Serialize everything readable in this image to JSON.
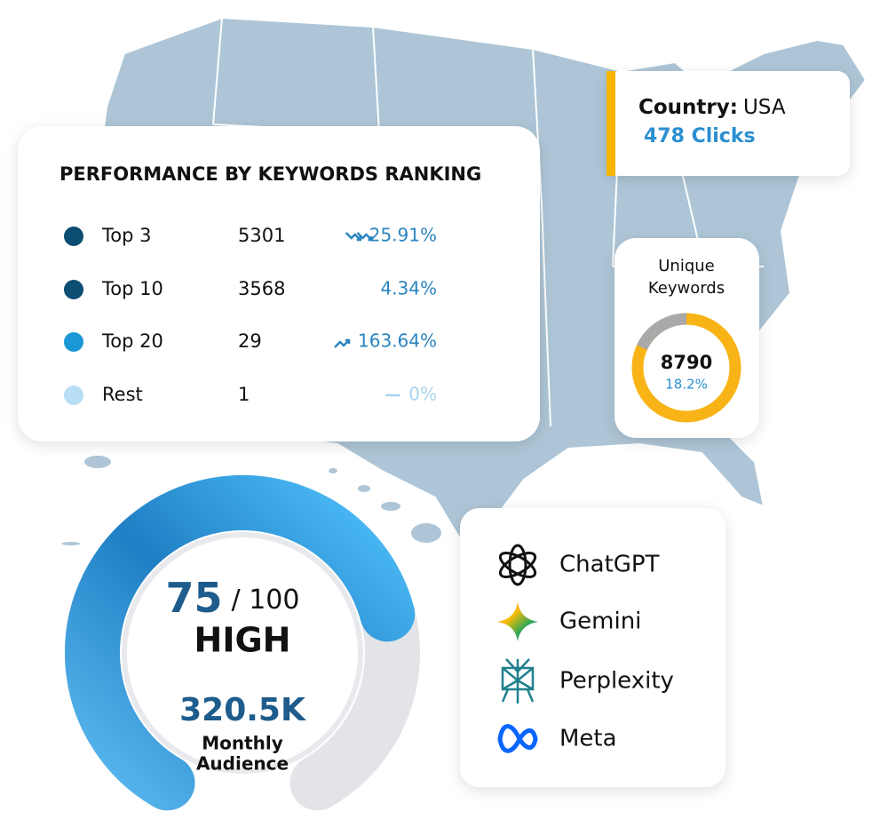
{
  "map_card": {
    "country_label": "Country:",
    "country": "USA",
    "clicks": "478 Clicks"
  },
  "performance": {
    "title": "PERFORMANCE BY KEYWORDS RANKING",
    "rows": [
      {
        "label": "Top 3",
        "count": "5301",
        "change": "25.91%"
      },
      {
        "label": "Top 10",
        "count": "3568",
        "change": "4.34%"
      },
      {
        "label": "Top 20",
        "count": "29",
        "change": "163.64%"
      },
      {
        "label": "Rest",
        "count": "1",
        "change": "0%"
      }
    ]
  },
  "unique_keywords": {
    "title_lines": [
      "Unique",
      "Keywords"
    ],
    "total": "8790",
    "share": {
      "value": 18.2,
      "label": "18.2%"
    }
  },
  "gauge": {
    "score": 75,
    "max": {
      "value": 100,
      "label": "/ 100"
    },
    "level": "HIGH",
    "audience": "320.5K",
    "audience_label_lines": [
      "Monthly",
      "Audience"
    ]
  },
  "ai_platforms": [
    "ChatGPT",
    "Gemini",
    "Perplexity",
    "Meta"
  ]
}
